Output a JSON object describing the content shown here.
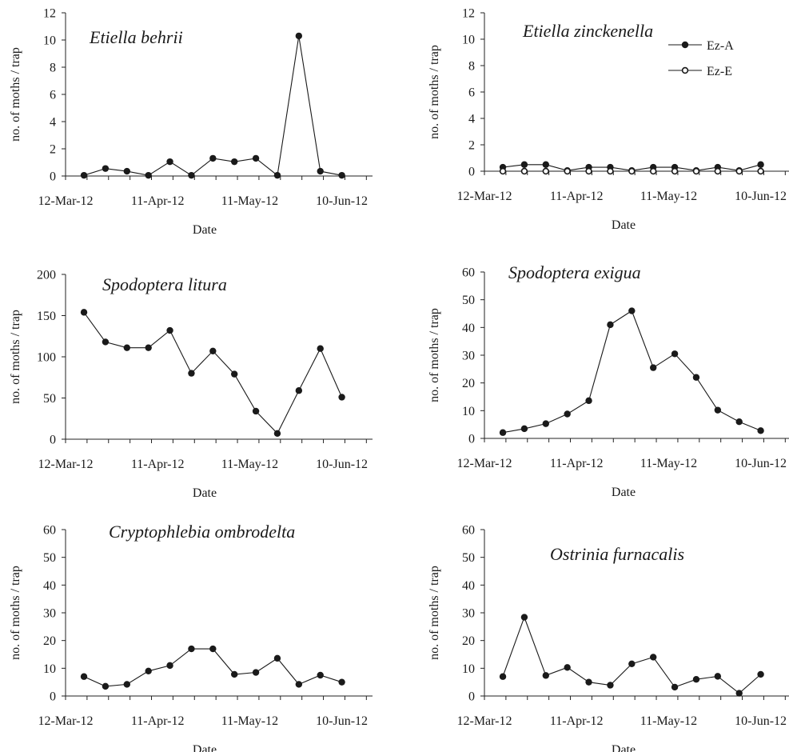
{
  "chart_data": [
    {
      "type": "line",
      "title": "Etiella behrii",
      "xlabel": "Date",
      "ylabel": "no. of moths / trap",
      "ylim": [
        0,
        12
      ],
      "yticks": [
        "0",
        "2",
        "4",
        "6",
        "8",
        "10",
        "12"
      ],
      "xlim": [
        "2012-03-12",
        "2012-06-20"
      ],
      "xticks": [
        {
          "label": "12-Mar-12",
          "date": "2012-03-12"
        },
        {
          "label": "11-Apr-12",
          "date": "2012-04-11"
        },
        {
          "label": "11-May-12",
          "date": "2012-05-11"
        },
        {
          "label": "10-Jun-12",
          "date": "2012-06-10"
        }
      ],
      "x": [
        "2012-03-18",
        "2012-03-25",
        "2012-04-01",
        "2012-04-08",
        "2012-04-15",
        "2012-04-22",
        "2012-04-29",
        "2012-05-06",
        "2012-05-13",
        "2012-05-20",
        "2012-05-27",
        "2012-06-03",
        "2012-06-10"
      ],
      "series": [
        {
          "marker": "filled",
          "values": [
            0.05,
            0.55,
            0.35,
            0.05,
            1.05,
            0.05,
            1.3,
            1.05,
            1.3,
            0.05,
            10.3,
            0.35,
            0.05
          ]
        }
      ],
      "grid": false
    },
    {
      "type": "line",
      "title": "Etiella zinckenella",
      "xlabel": "Date",
      "ylabel": "no. of moths / trap",
      "ylim": [
        0,
        12
      ],
      "yticks": [
        "0",
        "2",
        "4",
        "6",
        "8",
        "10",
        "12"
      ],
      "xlim": [
        "2012-03-12",
        "2012-06-20"
      ],
      "xticks": [
        {
          "label": "12-Mar-12",
          "date": "2012-03-12"
        },
        {
          "label": "11-Apr-12",
          "date": "2012-04-11"
        },
        {
          "label": "11-May-12",
          "date": "2012-05-11"
        },
        {
          "label": "10-Jun-12",
          "date": "2012-06-10"
        }
      ],
      "x": [
        "2012-03-18",
        "2012-03-25",
        "2012-04-01",
        "2012-04-08",
        "2012-04-15",
        "2012-04-22",
        "2012-04-29",
        "2012-05-06",
        "2012-05-13",
        "2012-05-20",
        "2012-05-27",
        "2012-06-03",
        "2012-06-10"
      ],
      "legend_position": "top-right",
      "series": [
        {
          "name": "Ez-A",
          "marker": "filled",
          "values": [
            0.3,
            0.5,
            0.5,
            0.05,
            0.3,
            0.3,
            0.05,
            0.3,
            0.3,
            0.05,
            0.3,
            0.05,
            0.5
          ]
        },
        {
          "name": "Ez-E",
          "marker": "open",
          "values": [
            0,
            0,
            0,
            0,
            0,
            0,
            0,
            0,
            0,
            0,
            0,
            0,
            0
          ]
        }
      ],
      "grid": false
    },
    {
      "type": "line",
      "title": "Spodoptera litura",
      "xlabel": "Date",
      "ylabel": "no. of moths / trap",
      "ylim": [
        0,
        200
      ],
      "yticks": [
        "0",
        "50",
        "100",
        "150",
        "200"
      ],
      "xlim": [
        "2012-03-12",
        "2012-06-20"
      ],
      "xticks": [
        {
          "label": "12-Mar-12",
          "date": "2012-03-12"
        },
        {
          "label": "11-Apr-12",
          "date": "2012-04-11"
        },
        {
          "label": "11-May-12",
          "date": "2012-05-11"
        },
        {
          "label": "10-Jun-12",
          "date": "2012-06-10"
        }
      ],
      "x": [
        "2012-03-18",
        "2012-03-25",
        "2012-04-01",
        "2012-04-08",
        "2012-04-15",
        "2012-04-22",
        "2012-04-29",
        "2012-05-06",
        "2012-05-13",
        "2012-05-20",
        "2012-05-27",
        "2012-06-03",
        "2012-06-10"
      ],
      "series": [
        {
          "marker": "filled",
          "values": [
            154,
            118,
            111,
            111,
            132,
            80,
            107,
            79,
            34,
            7,
            59,
            110,
            51
          ]
        }
      ],
      "grid": false
    },
    {
      "type": "line",
      "title": "Spodoptera exigua",
      "xlabel": "Date",
      "ylabel": "no. of moths / trap",
      "ylim": [
        0,
        60
      ],
      "yticks": [
        "0",
        "10",
        "20",
        "30",
        "40",
        "50",
        "60"
      ],
      "xlim": [
        "2012-03-12",
        "2012-06-20"
      ],
      "xticks": [
        {
          "label": "12-Mar-12",
          "date": "2012-03-12"
        },
        {
          "label": "11-Apr-12",
          "date": "2012-04-11"
        },
        {
          "label": "11-May-12",
          "date": "2012-05-11"
        },
        {
          "label": "10-Jun-12",
          "date": "2012-06-10"
        }
      ],
      "x": [
        "2012-03-18",
        "2012-03-25",
        "2012-04-01",
        "2012-04-08",
        "2012-04-15",
        "2012-04-22",
        "2012-04-29",
        "2012-05-06",
        "2012-05-13",
        "2012-05-20",
        "2012-05-27",
        "2012-06-03",
        "2012-06-10"
      ],
      "series": [
        {
          "marker": "filled",
          "values": [
            2.1,
            3.5,
            5.3,
            8.8,
            13.6,
            41,
            46,
            25.5,
            30.5,
            22,
            10.2,
            6,
            2.8
          ]
        }
      ],
      "grid": false
    },
    {
      "type": "line",
      "title": "Cryptophlebia ombrodelta",
      "xlabel": "Date",
      "ylabel": "no. of moths / trap",
      "ylim": [
        0,
        60
      ],
      "yticks": [
        "0",
        "10",
        "20",
        "30",
        "40",
        "50",
        "60"
      ],
      "xlim": [
        "2012-03-12",
        "2012-06-20"
      ],
      "xticks": [
        {
          "label": "12-Mar-12",
          "date": "2012-03-12"
        },
        {
          "label": "11-Apr-12",
          "date": "2012-04-11"
        },
        {
          "label": "11-May-12",
          "date": "2012-05-11"
        },
        {
          "label": "10-Jun-12",
          "date": "2012-06-10"
        }
      ],
      "x": [
        "2012-03-18",
        "2012-03-25",
        "2012-04-01",
        "2012-04-08",
        "2012-04-15",
        "2012-04-22",
        "2012-04-29",
        "2012-05-06",
        "2012-05-13",
        "2012-05-20",
        "2012-05-27",
        "2012-06-03",
        "2012-06-10"
      ],
      "series": [
        {
          "marker": "filled",
          "values": [
            7,
            3.5,
            4.2,
            9,
            11,
            17,
            17,
            7.8,
            8.5,
            13.6,
            4.2,
            7.5,
            5
          ]
        }
      ],
      "grid": false
    },
    {
      "type": "line",
      "title": "Ostrinia furnacalis",
      "xlabel": "Date",
      "ylabel": "no. of moths / trap",
      "ylim": [
        0,
        60
      ],
      "yticks": [
        "0",
        "10",
        "20",
        "30",
        "40",
        "50",
        "60"
      ],
      "xlim": [
        "2012-03-12",
        "2012-06-20"
      ],
      "xticks": [
        {
          "label": "12-Mar-12",
          "date": "2012-03-12"
        },
        {
          "label": "11-Apr-12",
          "date": "2012-04-11"
        },
        {
          "label": "11-May-12",
          "date": "2012-05-11"
        },
        {
          "label": "10-Jun-12",
          "date": "2012-06-10"
        }
      ],
      "x": [
        "2012-03-18",
        "2012-03-25",
        "2012-04-01",
        "2012-04-08",
        "2012-04-15",
        "2012-04-22",
        "2012-04-29",
        "2012-05-06",
        "2012-05-13",
        "2012-05-20",
        "2012-05-27",
        "2012-06-03",
        "2012-06-10"
      ],
      "series": [
        {
          "marker": "filled",
          "values": [
            7,
            28.4,
            7.4,
            10.3,
            5,
            3.9,
            11.6,
            14,
            3.2,
            6,
            7.1,
            1,
            7.8
          ]
        }
      ],
      "grid": false
    }
  ]
}
